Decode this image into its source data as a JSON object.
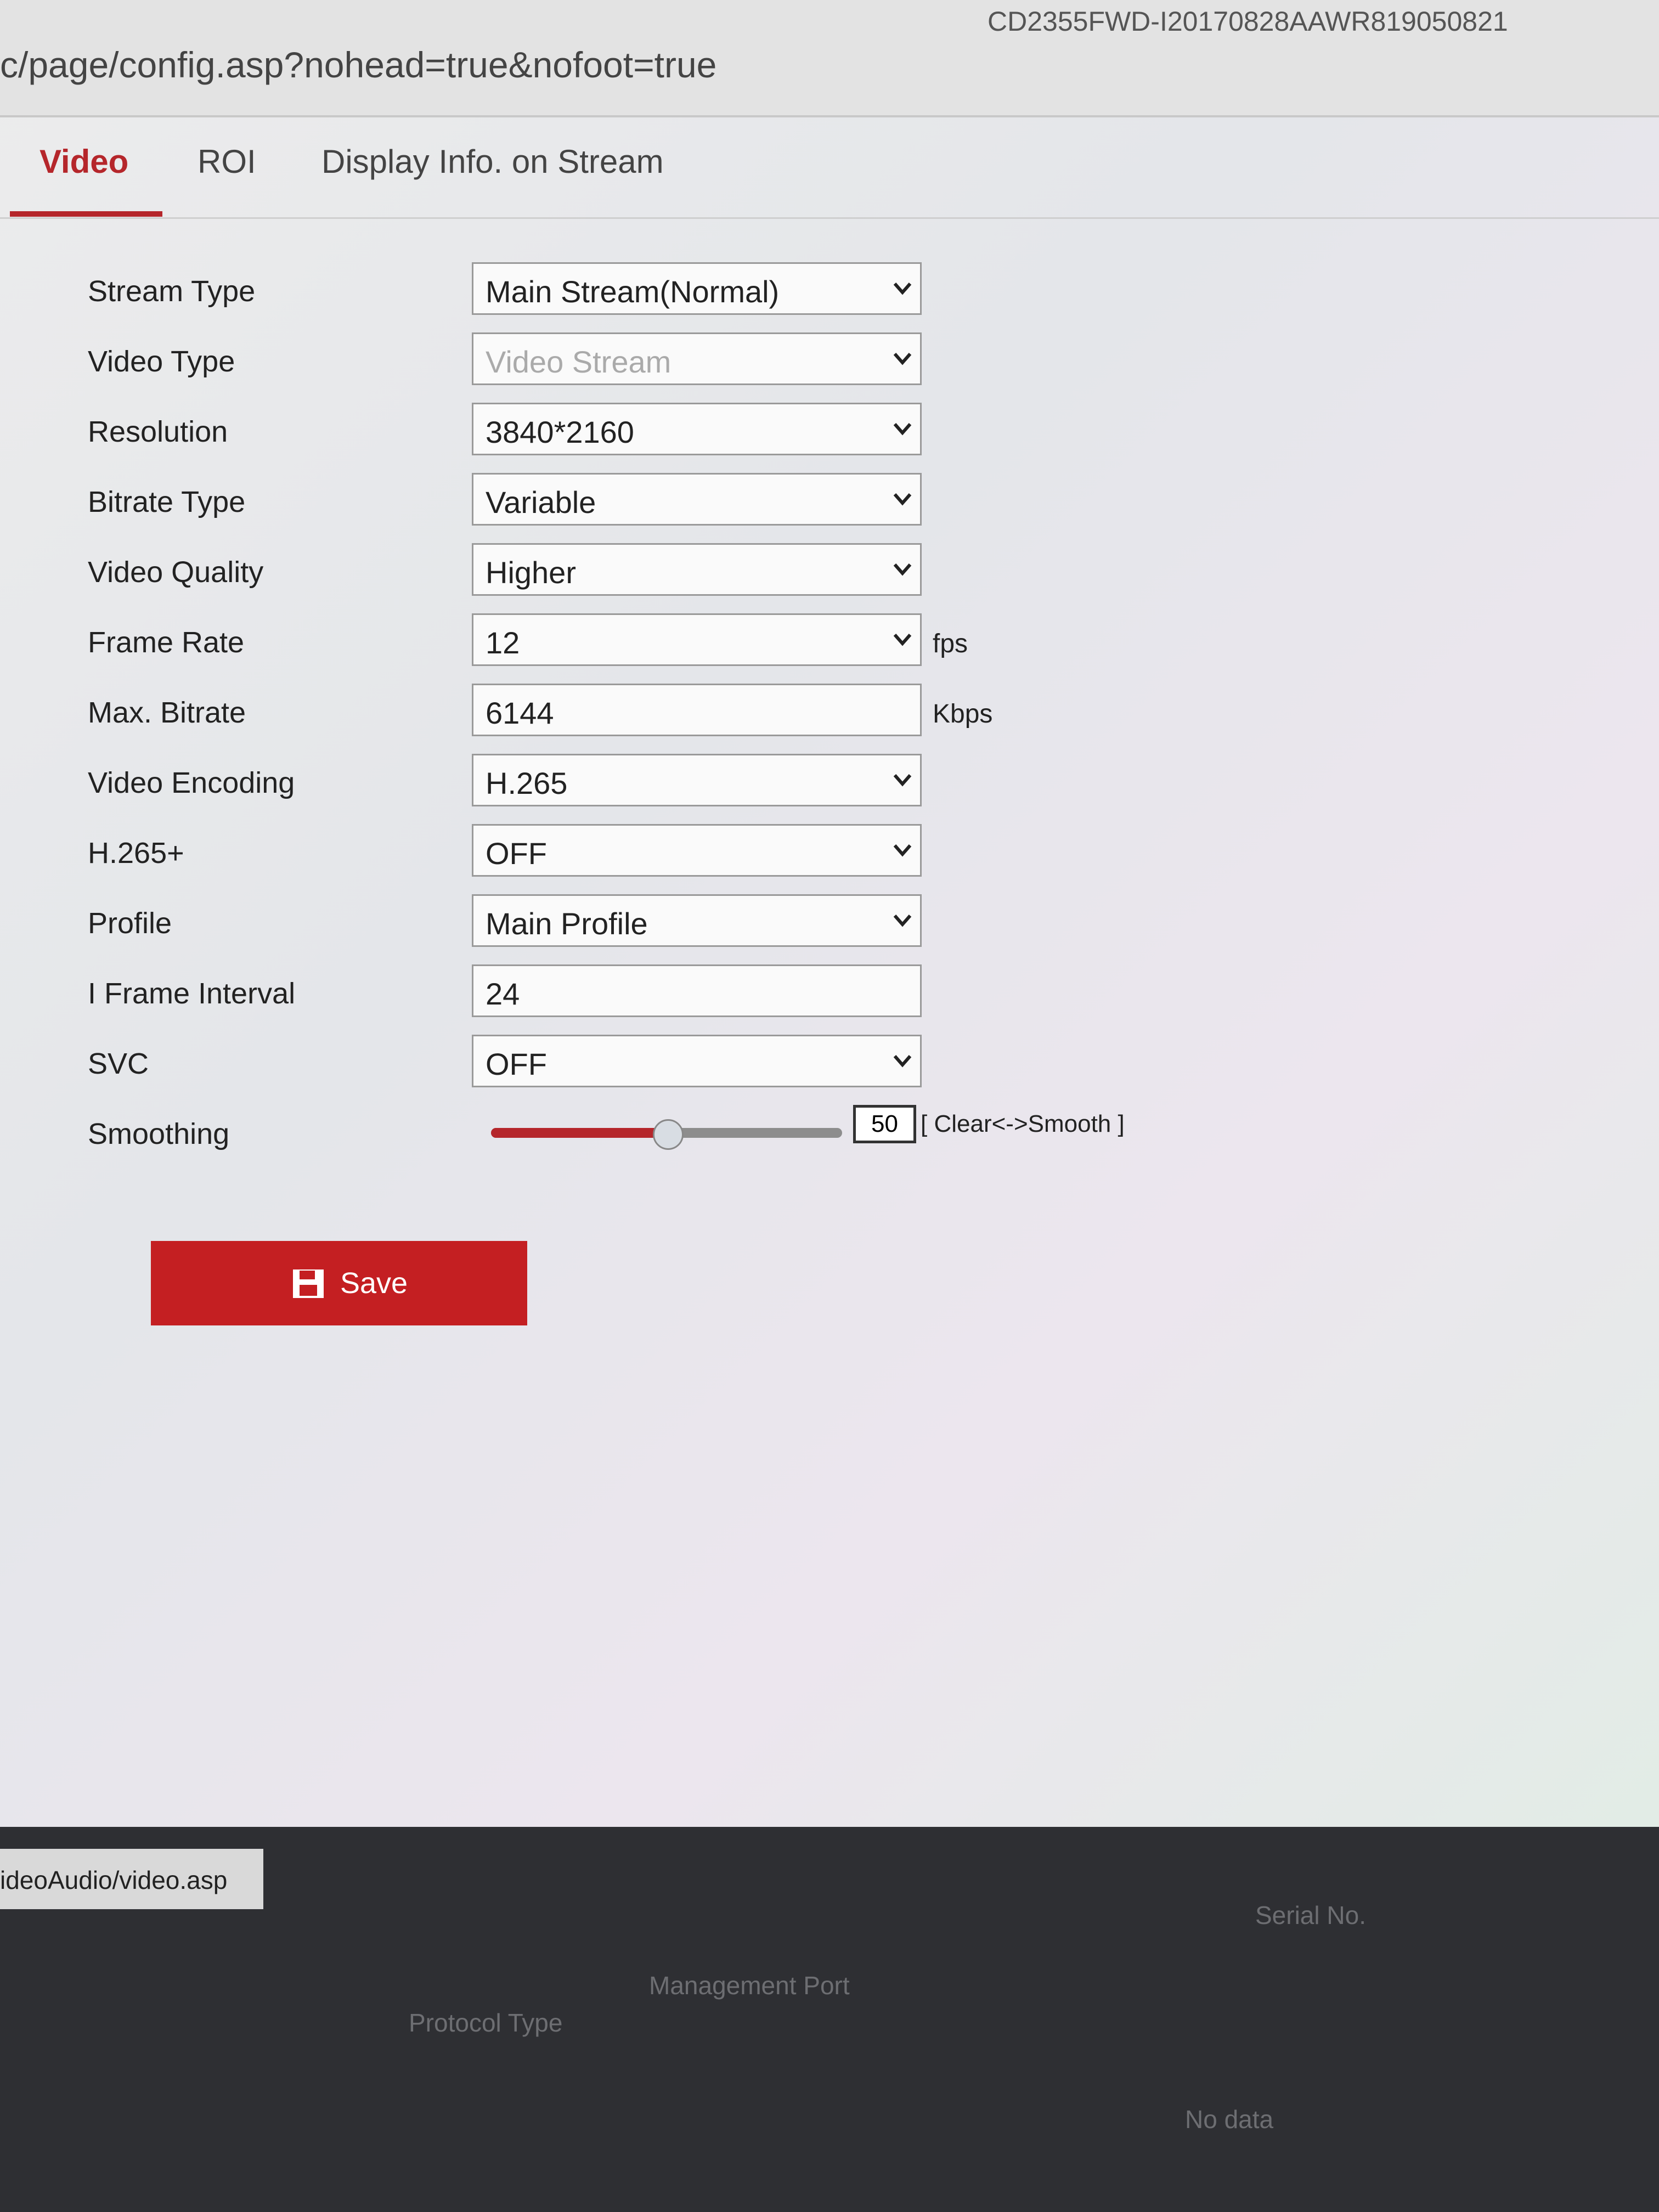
{
  "browser": {
    "title_fragment": "CD2355FWD-I20170828AAWR819050821",
    "url": "c/page/config.asp?nohead=true&nofoot=true"
  },
  "tabs": [
    "Video",
    "ROI",
    "Display Info. on Stream"
  ],
  "form": {
    "rows": [
      {
        "label": "Stream Type",
        "value": "Main Stream(Normal)"
      },
      {
        "label": "Video Type",
        "value": "Video Stream"
      },
      {
        "label": "Resolution",
        "value": "3840*2160"
      },
      {
        "label": "Bitrate Type",
        "value": "Variable"
      },
      {
        "label": "Video Quality",
        "value": "Higher"
      },
      {
        "label": "Frame Rate",
        "value": "12",
        "unit": "fps"
      },
      {
        "label": "Max. Bitrate",
        "value": "6144",
        "unit": "Kbps"
      },
      {
        "label": "Video Encoding",
        "value": "H.265"
      },
      {
        "label": "H.265+",
        "value": "OFF"
      },
      {
        "label": "Profile",
        "value": "Main Profile"
      },
      {
        "label": "I Frame Interval",
        "value": "24"
      },
      {
        "label": "SVC",
        "value": "OFF"
      },
      {
        "label": "Smoothing",
        "value": "50",
        "hint": "[ Clear<->Smooth ]"
      }
    ]
  },
  "save_button": "Save",
  "status_bar": "ideoAudio/video.asp",
  "background": {
    "columns": [
      "Protocol Type",
      "Management Port",
      "Serial No."
    ],
    "empty": "No data"
  }
}
